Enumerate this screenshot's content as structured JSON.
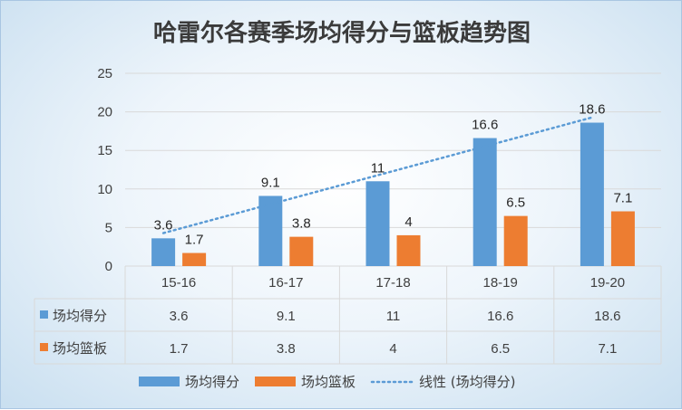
{
  "chart_data": {
    "type": "bar",
    "title": "哈雷尔各赛季场均得分与篮板趋势图",
    "categories": [
      "15-16",
      "16-17",
      "17-18",
      "18-19",
      "19-20"
    ],
    "series": [
      {
        "name": "场均得分",
        "values": [
          3.6,
          9.1,
          11,
          16.6,
          18.6
        ],
        "color": "#5b9bd5"
      },
      {
        "name": "场均篮板",
        "values": [
          1.7,
          3.8,
          4,
          6.5,
          7.1
        ],
        "color": "#ed7d31"
      }
    ],
    "trendline": {
      "name": "线性 (场均得分)",
      "series": "场均得分",
      "type": "linear",
      "style": "dotted",
      "color": "#5b9bd5"
    },
    "ylim": [
      0,
      25
    ],
    "yticks": [
      0,
      5,
      10,
      15,
      20,
      25
    ],
    "grid": true,
    "data_table": true,
    "data_labels": true,
    "legend_position": "bottom",
    "xlabel": "",
    "ylabel": ""
  }
}
